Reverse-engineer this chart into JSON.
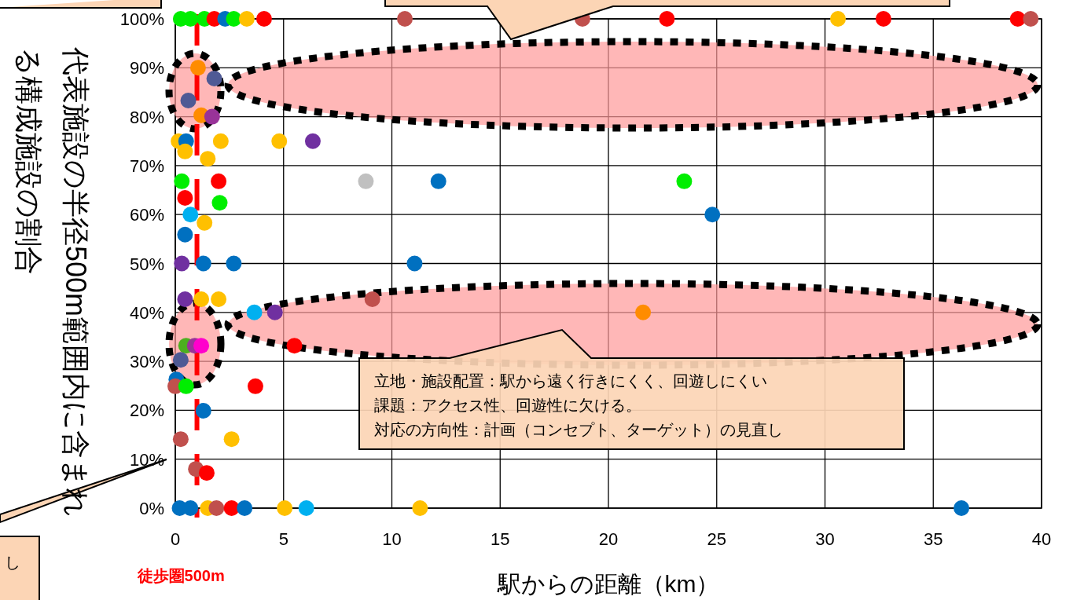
{
  "chart_data": {
    "type": "scatter",
    "marker": "circle",
    "x": [
      0.25,
      0.7,
      1.35,
      1.8,
      2.3,
      2.7,
      3.3,
      4.1,
      10.6,
      18.8,
      22.7,
      30.6,
      32.7,
      38.9,
      39.5,
      1.05,
      1.8,
      0.6,
      1.2,
      1.7,
      0.15,
      0.5,
      2.1,
      4.8,
      6.35,
      0.45,
      1.5,
      0.3,
      2.0,
      8.8,
      12.15,
      23.5,
      0.45,
      2.05,
      0.7,
      1.35,
      24.8,
      0.45,
      0.3,
      1.3,
      2.7,
      11.05,
      0.45,
      1.2,
      2.0,
      9.1,
      3.65,
      4.6,
      21.6,
      0.5,
      0.9,
      1.2,
      5.5,
      0.25,
      0.05,
      0,
      0.5,
      3.7,
      1.3,
      0.25,
      2.6,
      0.95,
      1.45,
      0.2,
      0.7,
      1.5,
      1.9,
      2.6,
      3.2,
      5.05,
      6.05,
      11.3,
      36.3
    ],
    "values": [
      100,
      100,
      100,
      100,
      100,
      100,
      100,
      100,
      100,
      100,
      100,
      100,
      100,
      100,
      100,
      90,
      87.8,
      83.3,
      80.3,
      80,
      75,
      75,
      75,
      75,
      75,
      72.9,
      71.4,
      66.8,
      66.8,
      66.8,
      66.8,
      66.8,
      63.4,
      62.4,
      60,
      58.3,
      60,
      55.9,
      50,
      50,
      50,
      50,
      42.7,
      42.7,
      42.7,
      42.7,
      40,
      40,
      40,
      33.2,
      33.2,
      33.2,
      33.2,
      30.3,
      26.3,
      24.9,
      24.9,
      24.9,
      19.9,
      14.1,
      14.1,
      8,
      7.2,
      0,
      0,
      0,
      0,
      0,
      0,
      0,
      0,
      0,
      0
    ],
    "colors": [
      "#00ee00",
      "#00ee00",
      "#00ee00",
      "#ff0000",
      "#0070c0",
      "#00ee00",
      "#ffc000",
      "#ff0000",
      "#c0504d",
      "#c0504d",
      "#ff0000",
      "#ffc000",
      "#ff0000",
      "#ff0000",
      "#c0504d",
      "#ff8c00",
      "#4f5a95",
      "#4f5a95",
      "#ff8c00",
      "#993399",
      "#ffc000",
      "#0070c0",
      "#ffc000",
      "#ffc000",
      "#7030a0",
      "#ffc000",
      "#ffc000",
      "#00ee00",
      "#ff0000",
      "#c0c0c0",
      "#0070c0",
      "#00ee00",
      "#ff0000",
      "#00ee00",
      "#00b0f0",
      "#ffc000",
      "#0070c0",
      "#0070c0",
      "#7030a0",
      "#0070c0",
      "#0070c0",
      "#0070c0",
      "#7030a0",
      "#ffc000",
      "#ffc000",
      "#c0504d",
      "#00b0f0",
      "#7030a0",
      "#ff8c00",
      "#4caf20",
      "#993399",
      "#ff00cc",
      "#ff0000",
      "#4f5a95",
      "#0070c0",
      "#c0504d",
      "#00ee00",
      "#ff0000",
      "#0070c0",
      "#c0504d",
      "#ffc000",
      "#c0504d",
      "#ff0000",
      "#0070c0",
      "#0070c0",
      "#ffc000",
      "#c0504d",
      "#ff0000",
      "#0070c0",
      "#ffc000",
      "#00b0f0",
      "#ffc000",
      "#0070c0"
    ],
    "xlim": [
      0,
      40
    ],
    "xticks": [
      0,
      5,
      10,
      15,
      20,
      25,
      30,
      35,
      40
    ],
    "ylim": [
      0,
      100
    ],
    "yticks": [
      {
        "value": 0,
        "label": "0%"
      },
      {
        "value": 10,
        "label": "10%"
      },
      {
        "value": 20,
        "label": "20%"
      },
      {
        "value": 30,
        "label": "30%"
      },
      {
        "value": 40,
        "label": "40%"
      },
      {
        "value": 50,
        "label": "50%"
      },
      {
        "value": 60,
        "label": "60%"
      },
      {
        "value": 70,
        "label": "70%"
      },
      {
        "value": 80,
        "label": "80%"
      },
      {
        "value": 90,
        "label": "90%"
      },
      {
        "value": 100,
        "label": "100%"
      }
    ],
    "grid": true,
    "xlabel": "駅からの距離（km）",
    "ylabel": "代表施設の半径500m範囲内に含まれる構成施設の割合",
    "ref_lines": [
      {
        "axis": "x",
        "value": 1,
        "label": "徒歩圏500m",
        "color": "#ff0000",
        "line_style": "dashed"
      }
    ],
    "annotations": [
      "立地・施設配置：駅から遠く行きにくく、回遊しにくい",
      "課題：アクセス性、回遊性に欠ける。",
      "対応の方向性：計画（コンセプト、ターゲット）の見直し",
      "し"
    ]
  }
}
